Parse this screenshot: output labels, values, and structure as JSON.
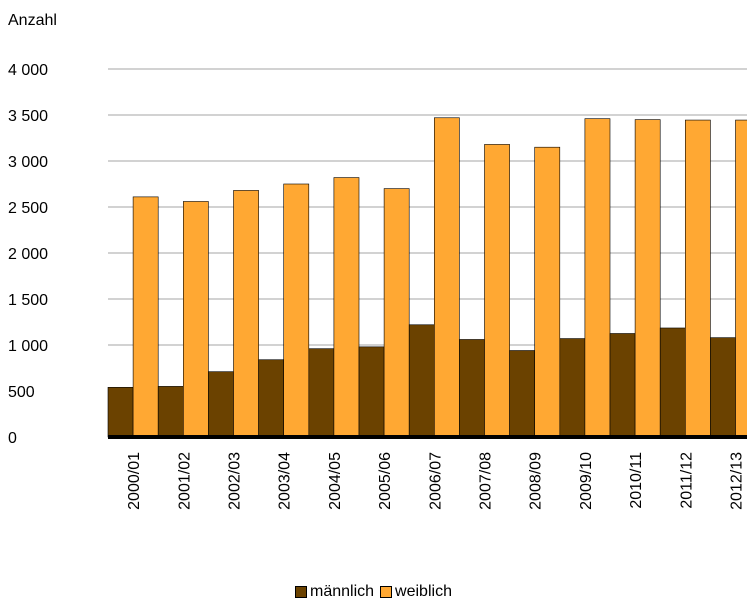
{
  "chart_data": {
    "type": "bar",
    "ylabel": "Anzahl",
    "ylim": [
      0,
      4000
    ],
    "yticks": [
      0,
      500,
      1000,
      1500,
      2000,
      2500,
      3000,
      3500,
      4000
    ],
    "ytick_labels": [
      "0",
      "500",
      "1 000",
      "1 500",
      "2 000",
      "2 500",
      "3 000",
      "3 500",
      "4 000"
    ],
    "categories": [
      "2000/01",
      "2001/02",
      "2002/03",
      "2003/04",
      "2004/05",
      "2005/06",
      "2006/07",
      "2007/08",
      "2008/09",
      "2009/10",
      "2010/11",
      "2011/12",
      "2012/13"
    ],
    "series": [
      {
        "name": "männlich",
        "color": "#6b4200",
        "values": [
          540,
          550,
          710,
          840,
          960,
          980,
          1220,
          1060,
          940,
          1070,
          1125,
          1185,
          1080
        ]
      },
      {
        "name": "weiblich",
        "color": "#ffa833",
        "values": [
          2610,
          2560,
          2680,
          2750,
          2820,
          2700,
          3470,
          3180,
          3150,
          3460,
          3450,
          3445,
          3445
        ]
      }
    ],
    "grid": true,
    "legend_position": "bottom"
  }
}
